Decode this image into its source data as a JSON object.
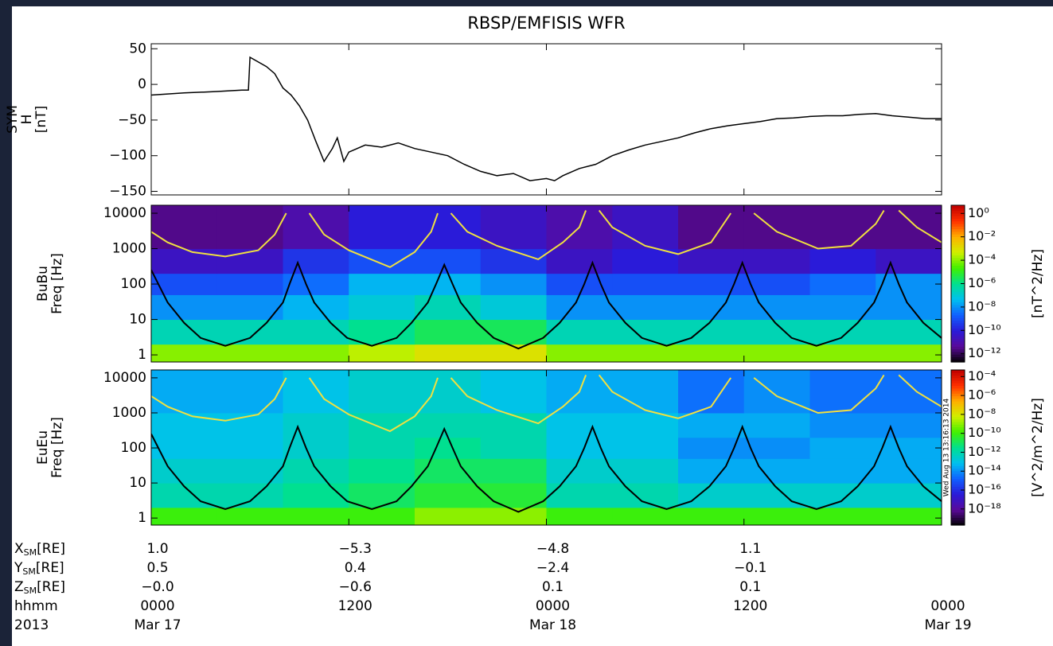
{
  "colormap": [
    "#000000",
    "#5a0a9a",
    "#2a1ad8",
    "#1060ff",
    "#00c0f0",
    "#00e090",
    "#40f000",
    "#d0f000",
    "#ffb000",
    "#ff3000",
    "#c00000"
  ],
  "overlay_curves": [
    {
      "color": "#000000",
      "x": [
        0,
        1,
        2,
        3,
        4.5,
        6,
        7,
        8,
        8.4,
        8.9,
        9.4,
        9.9,
        10.9,
        11.9,
        13.4,
        14.9,
        15.8,
        16.8,
        17.3,
        17.8,
        18.3,
        18.8,
        19.8,
        20.8,
        22.3,
        23.8,
        24.8,
        25.8,
        26.3,
        26.8,
        27.3,
        27.8,
        28.8,
        29.8,
        31.3,
        32.8,
        33.9,
        34.9,
        35.4,
        35.9,
        36.4,
        36.9,
        37.9,
        38.9,
        40.4,
        41.9,
        42.9,
        43.9,
        44.4,
        44.9,
        45.4,
        45.9,
        46.9,
        48
      ],
      "values": [
        250,
        30,
        8,
        3,
        1.8,
        3,
        8,
        30,
        100,
        400,
        100,
        30,
        8,
        3,
        1.8,
        3,
        8,
        30,
        100,
        350,
        100,
        30,
        8,
        3,
        1.5,
        3,
        8,
        30,
        100,
        400,
        100,
        30,
        8,
        3,
        1.8,
        3,
        8,
        30,
        100,
        400,
        100,
        30,
        8,
        3,
        1.8,
        3,
        8,
        30,
        100,
        400,
        100,
        30,
        8,
        3
      ]
    },
    {
      "color": "#f0e040",
      "x": [
        0,
        1,
        2.5,
        4.5,
        6.5,
        7.5,
        8.2,
        8.9,
        9.6,
        10.5,
        12,
        14.5,
        16,
        17,
        17.4,
        17.8,
        18.2,
        19.2,
        21,
        23.5,
        25,
        26,
        26.4,
        26.8,
        27.2,
        28,
        30,
        32,
        34,
        35.2,
        35.9,
        36.6,
        38,
        40.5,
        42.5,
        44,
        44.5,
        44.9,
        45.4,
        46.5,
        48
      ],
      "values": [
        3000,
        1500,
        800,
        600,
        900,
        2500,
        10000,
        null,
        10000,
        2500,
        900,
        300,
        800,
        3000,
        10000,
        null,
        10000,
        3000,
        1200,
        500,
        1500,
        4000,
        12000,
        null,
        12000,
        4000,
        1200,
        700,
        1500,
        10000,
        null,
        10000,
        3000,
        1000,
        1200,
        5000,
        12000,
        null,
        12000,
        4000,
        1500
      ]
    }
  ],
  "chart_data": [
    {
      "type": "line",
      "title": "RBSP/EMFISIS WFR",
      "ylabel": [
        "SYM",
        "H",
        "[nT]"
      ],
      "color": "#000000",
      "xlim": [
        0,
        48
      ],
      "xticks": [
        0,
        12,
        24,
        36,
        48
      ],
      "ylim": [
        -155,
        57
      ],
      "yticks": [
        50,
        {
          "value": 0,
          "label": "0"
        },
        {
          "value": -50,
          "label": "−50"
        },
        {
          "value": -100,
          "label": "−100"
        },
        {
          "value": -150,
          "label": "−150"
        }
      ],
      "x": [
        0,
        2,
        4,
        5.5,
        5.9,
        6.0,
        7,
        7.5,
        8,
        8.5,
        9,
        9.5,
        10,
        10.5,
        11,
        11.3,
        11.7,
        12,
        13,
        14,
        15,
        16,
        17,
        18,
        19,
        20,
        21,
        22,
        23,
        24,
        24.5,
        25,
        26,
        27,
        28,
        29,
        30,
        31,
        32,
        33,
        34,
        35,
        36,
        37,
        38,
        39,
        40,
        41,
        42,
        43,
        44,
        45,
        46,
        47,
        48
      ],
      "values": [
        -15,
        -12,
        -10,
        -8,
        -8,
        38,
        25,
        15,
        -5,
        -15,
        -30,
        -50,
        -80,
        -108,
        -90,
        -75,
        -108,
        -95,
        -85,
        -88,
        -82,
        -90,
        -95,
        -100,
        -112,
        -122,
        -128,
        -125,
        -135,
        -132,
        -135,
        -128,
        -118,
        -112,
        -100,
        -92,
        -85,
        -80,
        -75,
        -68,
        -62,
        -58,
        -55,
        -52,
        -48,
        -47,
        -45,
        -44,
        -44,
        -42,
        -41,
        -44,
        -46,
        -48,
        -48
      ]
    },
    {
      "type": "heatmap",
      "ylabel": [
        "BuBu",
        "Freq [Hz]"
      ],
      "ylog": true,
      "xlim": [
        0,
        48
      ],
      "xticks": [
        0,
        12,
        24,
        36,
        48
      ],
      "ylim": [
        0.63,
        16800
      ],
      "yticks": [
        1,
        10,
        100,
        1000,
        10000
      ],
      "xbins": [
        0,
        4,
        8,
        12,
        16,
        20,
        24,
        28,
        32,
        36,
        40,
        44,
        48
      ],
      "ybins": [
        0.63,
        2,
        10,
        50,
        200,
        1000,
        16800
      ],
      "z": [
        [
          -4,
          -4,
          -4,
          -3.5,
          -3,
          -3,
          -4,
          -4,
          -4,
          -4,
          -4,
          -4
        ],
        [
          -6.5,
          -6.5,
          -6.5,
          -6,
          -5.5,
          -5.5,
          -6.5,
          -6.5,
          -6.5,
          -6.5,
          -6.5,
          -6.5
        ],
        [
          -8,
          -8,
          -7.5,
          -7,
          -6.5,
          -7,
          -8,
          -8,
          -8,
          -8,
          -8,
          -8
        ],
        [
          -9,
          -9,
          -8.5,
          -7.5,
          -7.5,
          -8,
          -9,
          -9,
          -9,
          -9,
          -8.5,
          -8
        ],
        [
          -10.5,
          -10.5,
          -9.5,
          -9,
          -9,
          -9.5,
          -10.5,
          -10,
          -10.5,
          -10.5,
          -10,
          -10.5
        ],
        [
          -11.5,
          -11.5,
          -11,
          -10,
          -10,
          -10.5,
          -11,
          -10.5,
          -11.5,
          -11.5,
          -11.5,
          -11.5
        ]
      ],
      "zlim": [
        -12.7,
        0.7
      ],
      "zticks": [
        {
          "value": 0,
          "label": "10⁰"
        },
        {
          "value": -2,
          "label": "10⁻²"
        },
        {
          "value": -4,
          "label": "10⁻⁴"
        },
        {
          "value": -6,
          "label": "10⁻⁶"
        },
        {
          "value": -8,
          "label": "10⁻⁸"
        },
        {
          "value": -10,
          "label": "10⁻¹⁰"
        },
        {
          "value": -12,
          "label": "10⁻¹²"
        }
      ],
      "zlabel": "[nT^2/Hz]"
    },
    {
      "type": "heatmap",
      "ylabel": [
        "EuEu",
        "Freq [Hz]"
      ],
      "ylog": true,
      "xlim": [
        0,
        48
      ],
      "xticks": [
        0,
        12,
        24,
        36,
        48
      ],
      "ylim": [
        0.63,
        16800
      ],
      "yticks": [
        1,
        10,
        100,
        1000,
        10000
      ],
      "xbins": [
        0,
        4,
        8,
        12,
        16,
        20,
        24,
        28,
        32,
        36,
        40,
        44,
        48
      ],
      "ybins": [
        0.63,
        2,
        10,
        50,
        200,
        1000,
        16800
      ],
      "z": [
        [
          -10,
          -10,
          -10,
          -10,
          -9,
          -9,
          -10,
          -10,
          -10,
          -10,
          -10,
          -10
        ],
        [
          -12,
          -12,
          -11.5,
          -11,
          -10.5,
          -10.5,
          -12,
          -12,
          -12.5,
          -12.5,
          -12.5,
          -12.5
        ],
        [
          -12.5,
          -12.5,
          -12,
          -11.5,
          -11,
          -11,
          -12.5,
          -12.5,
          -13.5,
          -13.5,
          -13.5,
          -13.5
        ],
        [
          -13,
          -13,
          -12.5,
          -12,
          -11.5,
          -12,
          -13,
          -13,
          -14,
          -14,
          -13.5,
          -13.5
        ],
        [
          -13,
          -13,
          -12.5,
          -12,
          -12,
          -12,
          -13,
          -13,
          -13.5,
          -13.5,
          -14,
          -14
        ],
        [
          -13.5,
          -13.5,
          -13,
          -12.5,
          -12.5,
          -13,
          -13.5,
          -13.5,
          -14.5,
          -14,
          -14.5,
          -14.5
        ]
      ],
      "zlim": [
        -19.7,
        -3.3
      ],
      "zticks": [
        {
          "value": -4,
          "label": "10⁻⁴"
        },
        {
          "value": -6,
          "label": "10⁻⁶"
        },
        {
          "value": -8,
          "label": "10⁻⁸"
        },
        {
          "value": -10,
          "label": "10⁻¹⁰"
        },
        {
          "value": -12,
          "label": "10⁻¹²"
        },
        {
          "value": -14,
          "label": "10⁻¹⁴"
        },
        {
          "value": -16,
          "label": "10⁻¹⁶"
        },
        {
          "value": -18,
          "label": "10⁻¹⁸"
        }
      ],
      "zlabel": "[V^2/m^2/Hz]",
      "timestamp": "Wed Aug 13 13:16:13 2014"
    }
  ],
  "ephemeris": {
    "rows": [
      {
        "label": "X",
        "sub": "SM",
        "unit": "[RE]",
        "values": [
          "1.0",
          "−5.3",
          "−4.8",
          "1.1"
        ]
      },
      {
        "label": "Y",
        "sub": "SM",
        "unit": "[RE]",
        "values": [
          "0.5",
          "0.4",
          "−2.4",
          "−0.1"
        ]
      },
      {
        "label": "Z",
        "sub": "SM",
        "unit": "[RE]",
        "values": [
          "−0.0",
          "−0.6",
          "0.1",
          "0.1"
        ]
      },
      {
        "label": "hhmm",
        "values": [
          "0000",
          "1200",
          "0000",
          "1200",
          "0000"
        ]
      },
      {
        "label": "2013",
        "values": [
          "Mar 17",
          null,
          "Mar 18",
          null,
          "Mar 19"
        ]
      }
    ]
  }
}
